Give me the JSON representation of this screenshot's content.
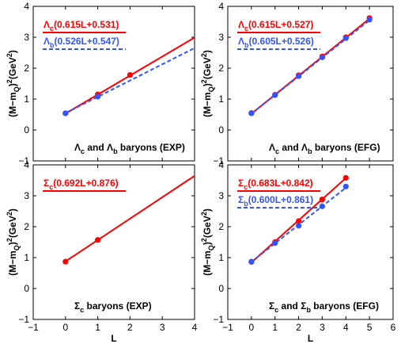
{
  "chart_data": [
    {
      "type": "line",
      "panel": "top-left",
      "xlim": [
        -1,
        4
      ],
      "ylim": [
        -1,
        4
      ],
      "xticks": [
        -1,
        0,
        1,
        2,
        3,
        4
      ],
      "yticks": [
        -1,
        0,
        1,
        2,
        3,
        4
      ],
      "show_x_ticklabels": false,
      "xlabel": "",
      "ylabel": "(M−mQ)²(GeV²)",
      "ylabel_parts": {
        "base": "(M−m",
        "sub": "Q",
        "mid": ")",
        "sup": "2",
        "unit": "(GeV",
        "unit_sup": "2",
        "end": ")"
      },
      "annotation": {
        "sym1": "Λ",
        "sub1": "c",
        "mid": " and ",
        "sym2": "Λ",
        "sub2": "b",
        "rest": " baryons (EXP)"
      },
      "series": [
        {
          "name": "Λc(0.615L+0.531)",
          "label_sym": "Λ",
          "label_sub": "c",
          "label_fit": "(0.615L+0.531)",
          "color": "#ff0000",
          "dashed": false,
          "slope": 0.615,
          "intercept": 0.531,
          "line_x": [
            0,
            4
          ],
          "points": [
            [
              0,
              0.54
            ],
            [
              1,
              1.15
            ],
            [
              2,
              1.78
            ]
          ]
        },
        {
          "name": "Λb(0.526L+0.547)",
          "label_sym": "Λ",
          "label_sub": "b",
          "label_fit": "(0.526L+0.547)",
          "color": "#3355ff",
          "dashed": true,
          "slope": 0.526,
          "intercept": 0.547,
          "line_x": [
            0,
            4
          ],
          "points": [
            [
              0,
              0.54
            ],
            [
              1,
              1.08
            ]
          ]
        }
      ]
    },
    {
      "type": "line",
      "panel": "top-right",
      "xlim": [
        -1,
        6
      ],
      "ylim": [
        -1,
        4
      ],
      "xticks": [
        -1,
        0,
        1,
        2,
        3,
        4,
        5,
        6
      ],
      "yticks": [
        -1,
        0,
        1,
        2,
        3,
        4
      ],
      "show_x_ticklabels": false,
      "xlabel": "",
      "ylabel": "(M−mQ)²(GeV²)",
      "ylabel_parts": {
        "base": "(M−m",
        "sub": "Q",
        "mid": ")",
        "sup": "2",
        "unit": "(GeV",
        "unit_sup": "2",
        "end": ")"
      },
      "annotation": {
        "sym1": "Λ",
        "sub1": "c",
        "mid": " and ",
        "sym2": "Λ",
        "sub2": "b",
        "rest": " baryons (EFG)"
      },
      "series": [
        {
          "name": "Λc(0.615L+0.527)",
          "label_sym": "Λ",
          "label_sub": "c",
          "label_fit": "(0.615L+0.527)",
          "color": "#ff0000",
          "dashed": false,
          "slope": 0.615,
          "intercept": 0.527,
          "line_x": [
            0,
            5
          ],
          "points": [
            [
              0,
              0.55
            ],
            [
              1,
              1.14
            ],
            [
              2,
              1.77
            ],
            [
              3,
              2.38
            ],
            [
              4,
              3.0
            ],
            [
              5,
              3.62
            ]
          ]
        },
        {
          "name": "Λb(0.605L+0.526)",
          "label_sym": "Λ",
          "label_sub": "b",
          "label_fit": "(0.605L+0.526)",
          "color": "#3355ff",
          "dashed": true,
          "slope": 0.605,
          "intercept": 0.526,
          "line_x": [
            0,
            5
          ],
          "points": [
            [
              0,
              0.54
            ],
            [
              1,
              1.13
            ],
            [
              2,
              1.74
            ],
            [
              3,
              2.35
            ],
            [
              4,
              2.97
            ],
            [
              5,
              3.57
            ]
          ]
        }
      ]
    },
    {
      "type": "line",
      "panel": "bottom-left",
      "xlim": [
        -1,
        4
      ],
      "ylim": [
        -1,
        4
      ],
      "xticks": [
        -1,
        0,
        1,
        2,
        3,
        4
      ],
      "yticks": [
        -1,
        0,
        1,
        2,
        3,
        4
      ],
      "show_x_ticklabels": true,
      "xlabel": "L",
      "ylabel": "(M−mQ)²(GeV²)",
      "ylabel_parts": {
        "base": "(M−m",
        "sub": "Q",
        "mid": ")",
        "sup": "2",
        "unit": "(GeV",
        "unit_sup": "2",
        "end": ")"
      },
      "annotation": {
        "sym1": "Σ",
        "sub1": "c",
        "mid": "",
        "sym2": "",
        "sub2": "",
        "rest": " baryons (EXP)"
      },
      "series": [
        {
          "name": "Σc(0.692L+0.876)",
          "label_sym": "Σ",
          "label_sub": "c",
          "label_fit": "(0.692L+0.876)",
          "color": "#ff0000",
          "dashed": false,
          "slope": 0.692,
          "intercept": 0.876,
          "line_x": [
            0,
            4
          ],
          "points": [
            [
              0,
              0.87
            ],
            [
              1,
              1.57
            ]
          ]
        }
      ]
    },
    {
      "type": "line",
      "panel": "bottom-right",
      "xlim": [
        -1,
        6
      ],
      "ylim": [
        -1,
        4
      ],
      "xticks": [
        -1,
        0,
        1,
        2,
        3,
        4,
        5,
        6
      ],
      "yticks": [
        -1,
        0,
        1,
        2,
        3,
        4
      ],
      "show_x_ticklabels": true,
      "xlabel": "L",
      "ylabel": "(M−mQ)²(GeV²)",
      "ylabel_parts": {
        "base": "(M−m",
        "sub": "Q",
        "mid": ")",
        "sup": "2",
        "unit": "(GeV",
        "unit_sup": "2",
        "end": ")"
      },
      "annotation": {
        "sym1": "Σ",
        "sub1": "c",
        "mid": " and ",
        "sym2": "Σ",
        "sub2": "b",
        "rest": " baryons (EFG)"
      },
      "series": [
        {
          "name": "Σc(0.683L+0.842)",
          "label_sym": "Σ",
          "label_sub": "c",
          "label_fit": "(0.683L+0.842)",
          "color": "#ff0000",
          "dashed": false,
          "slope": 0.683,
          "intercept": 0.842,
          "line_x": [
            0,
            4
          ],
          "points": [
            [
              0,
              0.86
            ],
            [
              1,
              1.5
            ],
            [
              2,
              2.18
            ],
            [
              3,
              2.88
            ],
            [
              4,
              3.58
            ]
          ]
        },
        {
          "name": "Σb(0.600L+0.861)",
          "label_sym": "Σ",
          "label_sub": "b",
          "label_fit": "(0.600L+0.861)",
          "color": "#3355ff",
          "dashed": true,
          "slope": 0.6,
          "intercept": 0.861,
          "line_x": [
            0,
            4
          ],
          "points": [
            [
              0,
              0.87
            ],
            [
              1,
              1.47
            ],
            [
              2,
              2.03
            ],
            [
              3,
              2.66
            ],
            [
              4,
              3.3
            ]
          ]
        }
      ]
    }
  ]
}
